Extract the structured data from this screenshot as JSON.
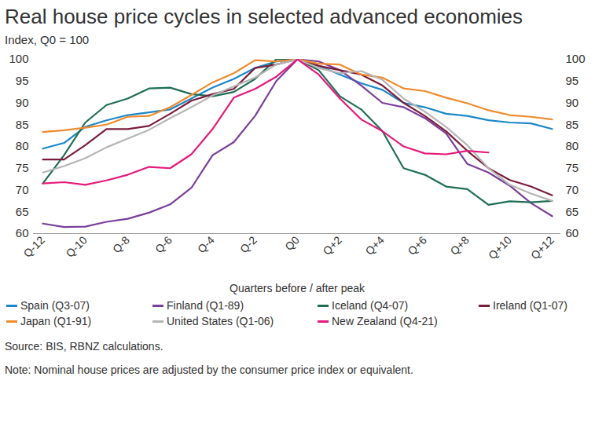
{
  "chart_data": {
    "type": "line",
    "title": "Real house price cycles in selected advanced economies",
    "y_label": "Index, Q0 = 100",
    "x_label": "Quarters before / after peak",
    "source": "Source: BIS, RBNZ calculations.",
    "note": "Note: Nominal house prices are adjusted by the consumer price index or equivalent.",
    "categories": [
      "Q-12",
      null,
      "Q-10",
      null,
      "Q-8",
      null,
      "Q-6",
      null,
      "Q-4",
      null,
      "Q-2",
      null,
      "Q0",
      null,
      "Q+2",
      null,
      "Q+4",
      null,
      "Q+6",
      null,
      "Q+8",
      null,
      "Q+10",
      null,
      "Q+12"
    ],
    "ylim": [
      60,
      100
    ],
    "yticks": [
      60,
      65,
      70,
      75,
      80,
      85,
      90,
      95,
      100
    ],
    "grid": false,
    "legend": "bottom",
    "series": [
      {
        "name": "Spain (Q3-07)",
        "color": "#1b87c9",
        "values": [
          79.5,
          80.8,
          84.5,
          86,
          87.2,
          87.8,
          88.5,
          91,
          93.5,
          95.5,
          98,
          99.5,
          100,
          98.5,
          96.5,
          94.5,
          93,
          90,
          89,
          87.5,
          87,
          86,
          85.5,
          85.3,
          84
        ]
      },
      {
        "name": "Finland (Q1-89)",
        "color": "#7a3f9a",
        "values": [
          62.3,
          61.5,
          61.6,
          62.7,
          63.4,
          64.8,
          66.7,
          70.5,
          78,
          81,
          87,
          95,
          100,
          99.5,
          97.5,
          94,
          90,
          89,
          86.5,
          83,
          76,
          74,
          71,
          67,
          64
        ]
      },
      {
        "name": "Iceland (Q4-07)",
        "color": "#1f6e54",
        "values": [
          71.5,
          78,
          85.5,
          89.5,
          91,
          93.3,
          93.5,
          92,
          91.5,
          92.5,
          95.5,
          100,
          100,
          97.5,
          91.5,
          88.5,
          83.5,
          75,
          73.5,
          70.8,
          70.2,
          66.6,
          67.4,
          67.2,
          67.5
        ]
      },
      {
        "name": "Ireland (Q1-07)",
        "color": "#7a1c3c",
        "values": [
          77,
          77,
          80.3,
          84,
          84,
          84.7,
          87.5,
          90.5,
          92,
          93.2,
          98,
          98.8,
          100,
          98.5,
          97.5,
          96.5,
          94,
          90,
          87,
          83.5,
          79,
          75,
          72.3,
          70.8,
          68.8
        ]
      },
      {
        "name": "Japan (Q1-91)",
        "color": "#f08a2c",
        "values": [
          83.3,
          83.7,
          84.3,
          85,
          86.8,
          87,
          89,
          91.8,
          94.7,
          96.8,
          99.8,
          99.5,
          100,
          99,
          98.8,
          96.5,
          95.8,
          93.3,
          92.7,
          91.2,
          89.9,
          88.3,
          87.2,
          86.8,
          86.2
        ]
      },
      {
        "name": "United States (Q1-06)",
        "color": "#b5b5b5",
        "values": [
          74,
          75.5,
          77.3,
          79.8,
          81.8,
          83.8,
          86.5,
          89,
          91.7,
          93.8,
          95.8,
          98.8,
          100,
          98,
          96.8,
          97.3,
          95.3,
          91,
          88,
          84.5,
          80.3,
          75,
          71.2,
          69.2,
          67.5
        ]
      },
      {
        "name": "New Zealand (Q4-21)",
        "color": "#e5197a",
        "values": [
          71.5,
          71.8,
          71.2,
          72.2,
          73.5,
          75.3,
          75,
          78.2,
          84,
          91.2,
          93.2,
          96,
          100,
          96.5,
          91,
          86.2,
          83.5,
          80,
          78.4,
          78.2,
          79,
          78.6,
          null,
          null,
          null
        ]
      }
    ]
  }
}
